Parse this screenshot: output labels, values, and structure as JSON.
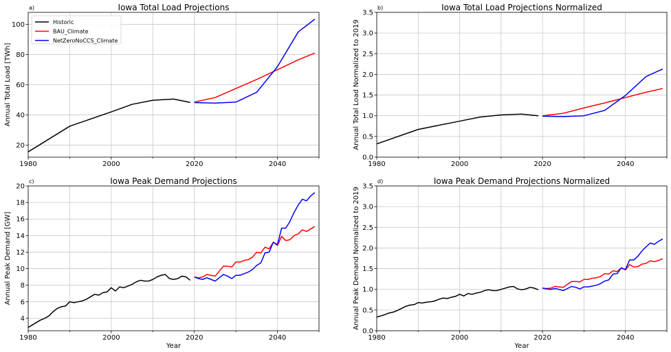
{
  "chart_data": [
    {
      "type": "line",
      "panel_label": "a)",
      "title": "Iowa Total Load Projections",
      "xlabel": "",
      "ylabel": "Annual Total Load [TWh]",
      "xlim": [
        1980,
        2050
      ],
      "ylim": [
        12,
        108
      ],
      "xticks": [
        1980,
        2000,
        2020,
        2040
      ],
      "yticks": [
        20,
        40,
        60,
        80,
        100
      ],
      "grid": true,
      "legend": "top-left",
      "series": [
        {
          "name": "Historic",
          "color": "#000000",
          "x": [
            1980,
            1990,
            2000,
            2005,
            2010,
            2015,
            2019
          ],
          "y": [
            15.5,
            32.5,
            42,
            47,
            49.7,
            50.5,
            48.3
          ]
        },
        {
          "name": "BAU_Climate",
          "color": "#ff0000",
          "x": [
            2020,
            2025,
            2030,
            2035,
            2040,
            2045,
            2049
          ],
          "y": [
            48.5,
            51.5,
            57.5,
            63.5,
            70,
            76.5,
            81
          ]
        },
        {
          "name": "NetZeroNoCCS_Climate",
          "color": "#0000ff",
          "x": [
            2020,
            2025,
            2030,
            2035,
            2040,
            2045,
            2049
          ],
          "y": [
            48.2,
            47.8,
            48.5,
            55,
            72,
            95,
            103.5
          ]
        }
      ]
    },
    {
      "type": "line",
      "panel_label": "b)",
      "title": "Iowa Total Load Projections Normalized",
      "xlabel": "",
      "ylabel": "Annual Total Load Normalized to 2019",
      "xlim": [
        1980,
        2050
      ],
      "ylim": [
        0,
        3.5
      ],
      "xticks": [
        1980,
        2000,
        2020,
        2040
      ],
      "yticks": [
        0.0,
        0.5,
        1.0,
        1.5,
        2.0,
        2.5,
        3.0,
        3.5
      ],
      "ytick_labels": [
        "0.0",
        "0.5",
        "1.0",
        "1.5",
        "2.0",
        "2.5",
        "3.0",
        "3.5"
      ],
      "grid": true,
      "series": [
        {
          "name": "Historic",
          "color": "#000000",
          "x": [
            1980,
            1990,
            2000,
            2005,
            2010,
            2015,
            2019
          ],
          "y": [
            0.32,
            0.67,
            0.87,
            0.97,
            1.02,
            1.04,
            1.0
          ]
        },
        {
          "name": "BAU_Climate",
          "color": "#ff0000",
          "x": [
            2020,
            2025,
            2030,
            2035,
            2040,
            2045,
            2049
          ],
          "y": [
            1.0,
            1.06,
            1.19,
            1.31,
            1.44,
            1.57,
            1.66
          ]
        },
        {
          "name": "NetZeroNoCCS_Climate",
          "color": "#0000ff",
          "x": [
            2020,
            2025,
            2030,
            2035,
            2040,
            2045,
            2049
          ],
          "y": [
            0.99,
            0.98,
            1.0,
            1.13,
            1.49,
            1.95,
            2.13
          ]
        }
      ]
    },
    {
      "type": "line",
      "panel_label": "c)",
      "title": "Iowa Peak Demand Projections",
      "xlabel": "Year",
      "ylabel": "Annual Peak Demand [GW]",
      "xlim": [
        1980,
        2050
      ],
      "ylim": [
        2.5,
        20
      ],
      "xticks": [
        1980,
        2000,
        2020,
        2040
      ],
      "yticks": [
        4,
        6,
        8,
        10,
        12,
        14,
        16,
        18,
        20
      ],
      "grid": true,
      "series": [
        {
          "name": "Historic",
          "color": "#000000",
          "x": [
            1980,
            1981,
            1982,
            1983,
            1984,
            1985,
            1986,
            1987,
            1988,
            1989,
            1990,
            1991,
            1992,
            1993,
            1994,
            1995,
            1996,
            1997,
            1998,
            1999,
            2000,
            2001,
            2002,
            2003,
            2004,
            2005,
            2006,
            2007,
            2008,
            2009,
            2010,
            2011,
            2012,
            2013,
            2014,
            2015,
            2016,
            2017,
            2018,
            2019
          ],
          "y": [
            2.9,
            3.2,
            3.5,
            3.8,
            4.0,
            4.3,
            4.8,
            5.2,
            5.4,
            5.5,
            6.0,
            5.9,
            6.0,
            6.1,
            6.3,
            6.6,
            6.9,
            6.8,
            7.1,
            7.2,
            7.7,
            7.3,
            7.8,
            7.7,
            7.9,
            8.1,
            8.4,
            8.6,
            8.5,
            8.5,
            8.7,
            9.0,
            9.2,
            9.3,
            8.8,
            8.7,
            8.8,
            9.1,
            9.0,
            8.6
          ]
        },
        {
          "name": "BAU_Climate",
          "color": "#ff0000",
          "x": [
            2020,
            2021,
            2022,
            2023,
            2024,
            2025,
            2026,
            2027,
            2028,
            2029,
            2030,
            2031,
            2032,
            2033,
            2034,
            2035,
            2036,
            2037,
            2038,
            2039,
            2040,
            2041,
            2042,
            2043,
            2044,
            2045,
            2046,
            2047,
            2048,
            2049
          ],
          "y": [
            9.0,
            8.9,
            9.0,
            9.3,
            9.2,
            9.1,
            9.7,
            10.3,
            10.3,
            10.2,
            10.8,
            10.8,
            11.0,
            11.1,
            11.4,
            12.0,
            11.9,
            12.6,
            12.4,
            13.2,
            12.8,
            13.9,
            13.4,
            13.5,
            14.0,
            14.2,
            14.7,
            14.5,
            14.8,
            15.1
          ]
        },
        {
          "name": "NetZeroNoCCS_Climate",
          "color": "#0000ff",
          "x": [
            2020,
            2021,
            2022,
            2023,
            2024,
            2025,
            2026,
            2027,
            2028,
            2029,
            2030,
            2031,
            2032,
            2033,
            2034,
            2035,
            2036,
            2037,
            2038,
            2039,
            2040,
            2041,
            2042,
            2043,
            2044,
            2045,
            2046,
            2047,
            2048,
            2049
          ],
          "y": [
            9.0,
            8.8,
            8.7,
            8.9,
            8.7,
            8.5,
            8.9,
            9.3,
            9.1,
            8.8,
            9.2,
            9.2,
            9.4,
            9.6,
            9.9,
            10.4,
            10.7,
            11.9,
            12.0,
            13.2,
            12.9,
            14.9,
            14.9,
            15.7,
            16.8,
            17.7,
            18.4,
            18.2,
            18.8,
            19.2
          ]
        }
      ]
    },
    {
      "type": "line",
      "panel_label": "d)",
      "title": "Iowa Peak Demand Projections Normalized",
      "xlabel": "Year",
      "ylabel": "Annual Peak Demand Normalized to 2019",
      "xlim": [
        1980,
        2050
      ],
      "ylim": [
        0,
        3.5
      ],
      "xticks": [
        1980,
        2000,
        2020,
        2040
      ],
      "yticks": [
        0.0,
        0.5,
        1.0,
        1.5,
        2.0,
        2.5,
        3.0,
        3.5
      ],
      "ytick_labels": [
        "0.0",
        "0.5",
        "1.0",
        "1.5",
        "2.0",
        "2.5",
        "3.0",
        "3.5"
      ],
      "grid": true,
      "series": [
        {
          "name": "Historic",
          "color": "#000000",
          "x": [
            1980,
            1981,
            1982,
            1983,
            1984,
            1985,
            1986,
            1987,
            1988,
            1989,
            1990,
            1991,
            1992,
            1993,
            1994,
            1995,
            1996,
            1997,
            1998,
            1999,
            2000,
            2001,
            2002,
            2003,
            2004,
            2005,
            2006,
            2007,
            2008,
            2009,
            2010,
            2011,
            2012,
            2013,
            2014,
            2015,
            2016,
            2017,
            2018,
            2019
          ],
          "y": [
            0.33,
            0.36,
            0.39,
            0.43,
            0.45,
            0.49,
            0.54,
            0.59,
            0.62,
            0.63,
            0.68,
            0.67,
            0.69,
            0.7,
            0.72,
            0.76,
            0.79,
            0.78,
            0.81,
            0.83,
            0.88,
            0.84,
            0.9,
            0.88,
            0.91,
            0.93,
            0.97,
            0.99,
            0.97,
            0.97,
            1.0,
            1.03,
            1.06,
            1.07,
            1.01,
            0.99,
            1.01,
            1.05,
            1.03,
            0.99
          ]
        },
        {
          "name": "BAU_Climate",
          "color": "#ff0000",
          "x": [
            2020,
            2021,
            2022,
            2023,
            2024,
            2025,
            2026,
            2027,
            2028,
            2029,
            2030,
            2031,
            2032,
            2033,
            2034,
            2035,
            2036,
            2037,
            2038,
            2039,
            2040,
            2041,
            2042,
            2043,
            2044,
            2045,
            2046,
            2047,
            2048,
            2049
          ],
          "y": [
            1.03,
            1.02,
            1.03,
            1.07,
            1.06,
            1.05,
            1.12,
            1.19,
            1.19,
            1.18,
            1.24,
            1.24,
            1.27,
            1.28,
            1.31,
            1.38,
            1.37,
            1.45,
            1.43,
            1.52,
            1.47,
            1.6,
            1.54,
            1.55,
            1.61,
            1.63,
            1.69,
            1.67,
            1.7,
            1.74
          ]
        },
        {
          "name": "NetZeroNoCCS_Climate",
          "color": "#0000ff",
          "x": [
            2020,
            2021,
            2022,
            2023,
            2024,
            2025,
            2026,
            2027,
            2028,
            2029,
            2030,
            2031,
            2032,
            2033,
            2034,
            2035,
            2036,
            2037,
            2038,
            2039,
            2040,
            2041,
            2042,
            2043,
            2044,
            2045,
            2046,
            2047,
            2048,
            2049
          ],
          "y": [
            1.03,
            1.01,
            1.0,
            1.02,
            1.0,
            0.97,
            1.02,
            1.07,
            1.05,
            1.01,
            1.06,
            1.06,
            1.08,
            1.1,
            1.14,
            1.2,
            1.23,
            1.37,
            1.38,
            1.52,
            1.48,
            1.71,
            1.71,
            1.8,
            1.93,
            2.03,
            2.12,
            2.09,
            2.16,
            2.22
          ]
        }
      ]
    }
  ]
}
